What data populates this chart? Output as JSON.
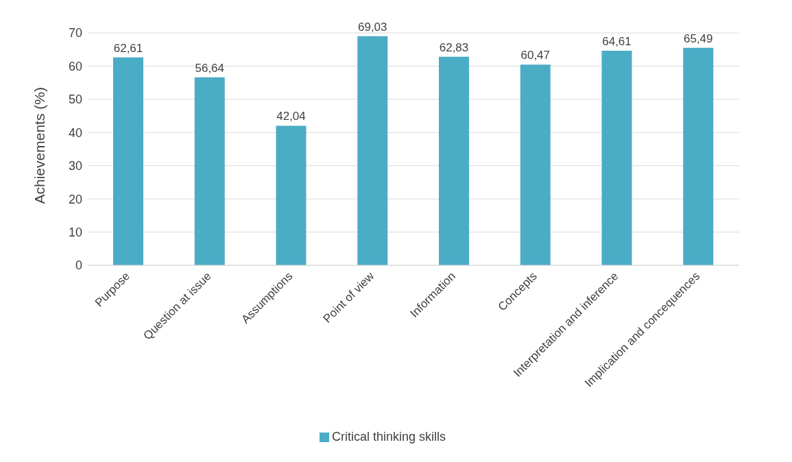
{
  "chart_data": {
    "type": "bar",
    "ylabel": "Achievements (%)",
    "categories": [
      "Purpose",
      "Question at issue",
      "Assumptions",
      "Point of view",
      "Information",
      "Concepts",
      "Interpretation and inference",
      "Implication and concequences"
    ],
    "series": [
      {
        "name": "Critical thinking skills",
        "color": "#4bacc6",
        "values": [
          62.61,
          56.64,
          42.04,
          69.03,
          62.83,
          60.47,
          64.61,
          65.49
        ],
        "value_labels": [
          "62,61",
          "56,64",
          "42,04",
          "69,03",
          "62,83",
          "60,47",
          "64,61",
          "65,49"
        ]
      }
    ],
    "ylim": [
      0,
      70
    ],
    "yticks": [
      0,
      10,
      20,
      30,
      40,
      50,
      60,
      70
    ],
    "grid": "y",
    "legend": "bottom"
  }
}
